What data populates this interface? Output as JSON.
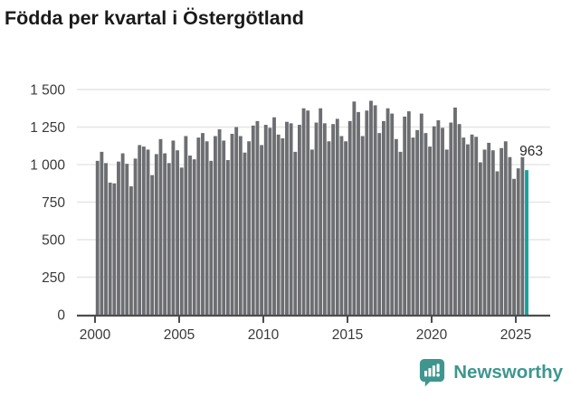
{
  "title": "Födda per kvartal i Östergötland",
  "footer": {
    "logo_text": "Newsworthy",
    "logo_color": "#3e968f"
  },
  "chart_data": {
    "type": "bar",
    "title": "Födda per kvartal i Östergötland",
    "xlabel": "",
    "ylabel": "",
    "ylim": [
      0,
      1500
    ],
    "grid": true,
    "legend_position": "none",
    "bar_color": "#6d6e71",
    "highlight_color": "#10a39e",
    "highlight_index": 102,
    "annotation": {
      "text": "963"
    },
    "y_ticks": [
      {
        "value": 0,
        "label": "0"
      },
      {
        "value": 250,
        "label": "250"
      },
      {
        "value": 500,
        "label": "500"
      },
      {
        "value": 750,
        "label": "750"
      },
      {
        "value": 1000,
        "label": "1 000"
      },
      {
        "value": 1250,
        "label": "1 250"
      },
      {
        "value": 1500,
        "label": "1 500"
      }
    ],
    "x_ticks": [
      {
        "year": 2000,
        "label": "2000"
      },
      {
        "year": 2005,
        "label": "2005"
      },
      {
        "year": 2010,
        "label": "2010"
      },
      {
        "year": 2015,
        "label": "2015"
      },
      {
        "year": 2020,
        "label": "2020"
      },
      {
        "year": 2025,
        "label": "2025"
      }
    ],
    "categories": [
      "2000Q1",
      "2000Q2",
      "2000Q3",
      "2000Q4",
      "2001Q1",
      "2001Q2",
      "2001Q3",
      "2001Q4",
      "2002Q1",
      "2002Q2",
      "2002Q3",
      "2002Q4",
      "2003Q1",
      "2003Q2",
      "2003Q3",
      "2003Q4",
      "2004Q1",
      "2004Q2",
      "2004Q3",
      "2004Q4",
      "2005Q1",
      "2005Q2",
      "2005Q3",
      "2005Q4",
      "2006Q1",
      "2006Q2",
      "2006Q3",
      "2006Q4",
      "2007Q1",
      "2007Q2",
      "2007Q3",
      "2007Q4",
      "2008Q1",
      "2008Q2",
      "2008Q3",
      "2008Q4",
      "2009Q1",
      "2009Q2",
      "2009Q3",
      "2009Q4",
      "2010Q1",
      "2010Q2",
      "2010Q3",
      "2010Q4",
      "2011Q1",
      "2011Q2",
      "2011Q3",
      "2011Q4",
      "2012Q1",
      "2012Q2",
      "2012Q3",
      "2012Q4",
      "2013Q1",
      "2013Q2",
      "2013Q3",
      "2013Q4",
      "2014Q1",
      "2014Q2",
      "2014Q3",
      "2014Q4",
      "2015Q1",
      "2015Q2",
      "2015Q3",
      "2015Q4",
      "2016Q1",
      "2016Q2",
      "2016Q3",
      "2016Q4",
      "2017Q1",
      "2017Q2",
      "2017Q3",
      "2017Q4",
      "2018Q1",
      "2018Q2",
      "2018Q3",
      "2018Q4",
      "2019Q1",
      "2019Q2",
      "2019Q3",
      "2019Q4",
      "2020Q1",
      "2020Q2",
      "2020Q3",
      "2020Q4",
      "2021Q1",
      "2021Q2",
      "2021Q3",
      "2021Q4",
      "2022Q1",
      "2022Q2",
      "2022Q3",
      "2022Q4",
      "2023Q1",
      "2023Q2",
      "2023Q3",
      "2023Q4",
      "2024Q1",
      "2024Q2",
      "2024Q3",
      "2024Q4",
      "2025Q1",
      "2025Q2",
      "2025Q3"
    ],
    "values": [
      1025,
      1085,
      1010,
      880,
      875,
      1020,
      1075,
      1005,
      855,
      1040,
      1130,
      1120,
      1100,
      930,
      1070,
      1170,
      1075,
      1010,
      1160,
      1095,
      980,
      1190,
      1060,
      1035,
      1180,
      1210,
      1155,
      1025,
      1190,
      1235,
      1160,
      1030,
      1205,
      1250,
      1190,
      1080,
      1155,
      1260,
      1290,
      1130,
      1265,
      1245,
      1315,
      1200,
      1175,
      1285,
      1275,
      1085,
      1265,
      1375,
      1360,
      1100,
      1280,
      1375,
      1275,
      1155,
      1270,
      1305,
      1190,
      1155,
      1290,
      1420,
      1350,
      1190,
      1360,
      1425,
      1395,
      1210,
      1290,
      1375,
      1340,
      1170,
      1085,
      1320,
      1355,
      1180,
      1230,
      1340,
      1210,
      1120,
      1255,
      1295,
      1245,
      1100,
      1280,
      1380,
      1270,
      1180,
      1135,
      1200,
      1185,
      1015,
      1100,
      1145,
      1095,
      955,
      1110,
      1155,
      1050,
      905,
      975,
      1050,
      963
    ]
  }
}
